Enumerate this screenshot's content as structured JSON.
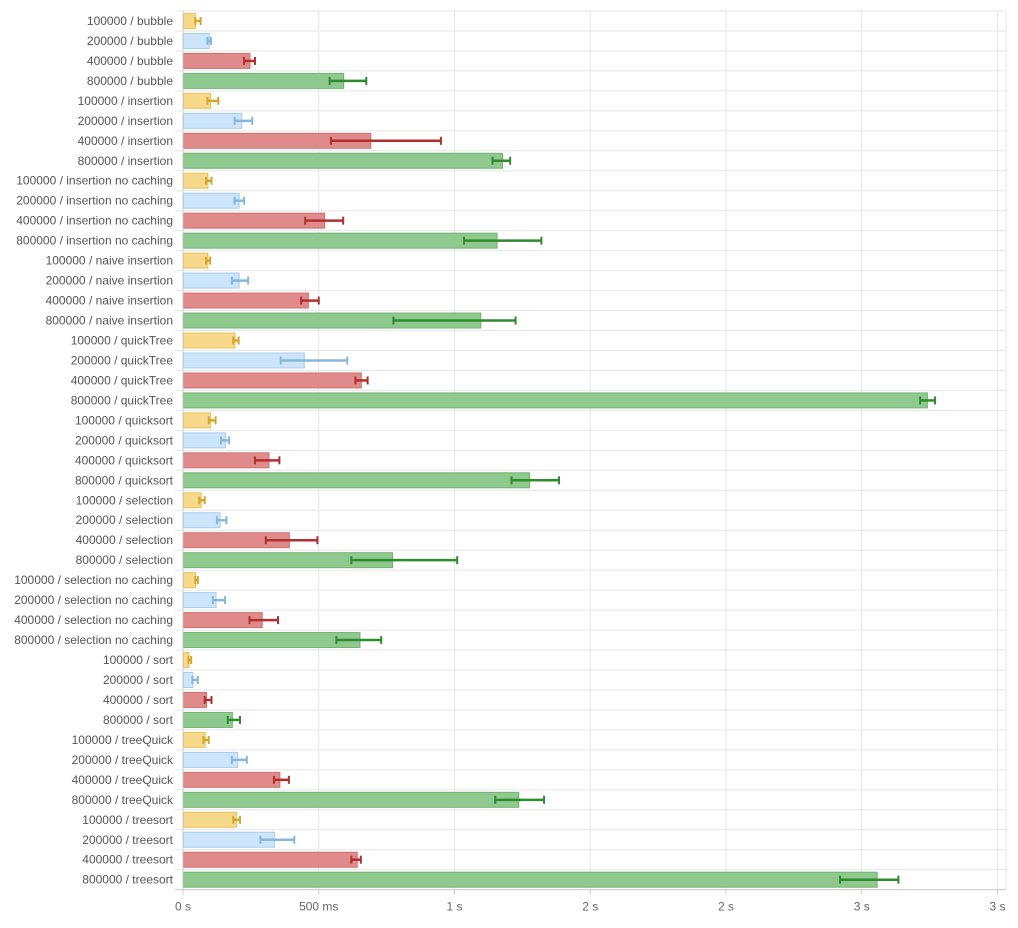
{
  "chart_data": {
    "type": "bar",
    "orientation": "horizontal",
    "error_bars": true,
    "grid": true,
    "x_unit": "ms",
    "xlim": [
      0,
      3000
    ],
    "x_ticks": [
      {
        "value": 0,
        "label": "0 s"
      },
      {
        "value": 500,
        "label": "500 ms"
      },
      {
        "value": 1000,
        "label": "1 s"
      },
      {
        "value": 1500,
        "label": "2 s"
      },
      {
        "value": 2000,
        "label": "2 s"
      },
      {
        "value": 2500,
        "label": "3 s"
      },
      {
        "value": 3000,
        "label": "3 s"
      }
    ],
    "colors": {
      "100000": {
        "fill": "#f7d98b",
        "stroke": "#e8c25a",
        "error": "#d4a72c"
      },
      "200000": {
        "fill": "#cce5fa",
        "stroke": "#a9cdeb",
        "error": "#86b8de"
      },
      "400000": {
        "fill": "#e08b8b",
        "stroke": "#d47070",
        "error": "#b03030"
      },
      "800000": {
        "fill": "#8fc98f",
        "stroke": "#6fb56f",
        "error": "#2e8b2e"
      }
    },
    "bars": [
      {
        "label": "100000 / bubble",
        "size": "100000",
        "value": 45,
        "err_low": 45,
        "err_high": 65
      },
      {
        "label": "200000 / bubble",
        "size": "200000",
        "value": 95,
        "err_low": 90,
        "err_high": 103
      },
      {
        "label": "400000 / bubble",
        "size": "400000",
        "value": 245,
        "err_low": 225,
        "err_high": 265
      },
      {
        "label": "800000 / bubble",
        "size": "800000",
        "value": 590,
        "err_low": 540,
        "err_high": 675
      },
      {
        "label": "100000 / insertion",
        "size": "100000",
        "value": 100,
        "err_low": 90,
        "err_high": 130
      },
      {
        "label": "200000 / insertion",
        "size": "200000",
        "value": 215,
        "err_low": 190,
        "err_high": 255
      },
      {
        "label": "400000 / insertion",
        "size": "400000",
        "value": 690,
        "err_low": 545,
        "err_high": 950
      },
      {
        "label": "800000 / insertion",
        "size": "800000",
        "value": 1175,
        "err_low": 1140,
        "err_high": 1205
      },
      {
        "label": "100000 / insertion no caching",
        "size": "100000",
        "value": 90,
        "err_low": 85,
        "err_high": 105
      },
      {
        "label": "200000 / insertion no caching",
        "size": "200000",
        "value": 205,
        "err_low": 190,
        "err_high": 225
      },
      {
        "label": "400000 / insertion no caching",
        "size": "400000",
        "value": 520,
        "err_low": 450,
        "err_high": 590
      },
      {
        "label": "800000 / insertion no caching",
        "size": "800000",
        "value": 1155,
        "err_low": 1035,
        "err_high": 1320
      },
      {
        "label": "100000 / naive insertion",
        "size": "100000",
        "value": 90,
        "err_low": 85,
        "err_high": 100
      },
      {
        "label": "200000 / naive insertion",
        "size": "200000",
        "value": 205,
        "err_low": 180,
        "err_high": 240
      },
      {
        "label": "400000 / naive insertion",
        "size": "400000",
        "value": 460,
        "err_low": 435,
        "err_high": 500
      },
      {
        "label": "800000 / naive insertion",
        "size": "800000",
        "value": 1095,
        "err_low": 775,
        "err_high": 1225
      },
      {
        "label": "100000 / quickTree",
        "size": "100000",
        "value": 190,
        "err_low": 185,
        "err_high": 205
      },
      {
        "label": "200000 / quickTree",
        "size": "200000",
        "value": 445,
        "err_low": 360,
        "err_high": 605
      },
      {
        "label": "400000 / quickTree",
        "size": "400000",
        "value": 655,
        "err_low": 635,
        "err_high": 680
      },
      {
        "label": "800000 / quickTree",
        "size": "800000",
        "value": 2740,
        "err_low": 2715,
        "err_high": 2770
      },
      {
        "label": "100000 / quicksort",
        "size": "100000",
        "value": 100,
        "err_low": 95,
        "err_high": 120
      },
      {
        "label": "200000 / quicksort",
        "size": "200000",
        "value": 155,
        "err_low": 140,
        "err_high": 170
      },
      {
        "label": "400000 / quicksort",
        "size": "400000",
        "value": 315,
        "err_low": 265,
        "err_high": 355
      },
      {
        "label": "800000 / quicksort",
        "size": "800000",
        "value": 1275,
        "err_low": 1210,
        "err_high": 1385
      },
      {
        "label": "100000 / selection",
        "size": "100000",
        "value": 65,
        "err_low": 60,
        "err_high": 80
      },
      {
        "label": "200000 / selection",
        "size": "200000",
        "value": 135,
        "err_low": 125,
        "err_high": 160
      },
      {
        "label": "400000 / selection",
        "size": "400000",
        "value": 390,
        "err_low": 305,
        "err_high": 495
      },
      {
        "label": "800000 / selection",
        "size": "800000",
        "value": 770,
        "err_low": 620,
        "err_high": 1010
      },
      {
        "label": "100000 / selection no caching",
        "size": "100000",
        "value": 45,
        "err_low": 45,
        "err_high": 55
      },
      {
        "label": "200000 / selection no caching",
        "size": "200000",
        "value": 120,
        "err_low": 110,
        "err_high": 155
      },
      {
        "label": "400000 / selection no caching",
        "size": "400000",
        "value": 290,
        "err_low": 245,
        "err_high": 350
      },
      {
        "label": "800000 / selection no caching",
        "size": "800000",
        "value": 650,
        "err_low": 565,
        "err_high": 730
      },
      {
        "label": "100000 / sort",
        "size": "100000",
        "value": 20,
        "err_low": 20,
        "err_high": 30
      },
      {
        "label": "200000 / sort",
        "size": "200000",
        "value": 35,
        "err_low": 35,
        "err_high": 55
      },
      {
        "label": "400000 / sort",
        "size": "400000",
        "value": 85,
        "err_low": 80,
        "err_high": 105
      },
      {
        "label": "800000 / sort",
        "size": "800000",
        "value": 180,
        "err_low": 165,
        "err_high": 210
      },
      {
        "label": "100000 / treeQuick",
        "size": "100000",
        "value": 80,
        "err_low": 75,
        "err_high": 95
      },
      {
        "label": "200000 / treeQuick",
        "size": "200000",
        "value": 200,
        "err_low": 180,
        "err_high": 235
      },
      {
        "label": "400000 / treeQuick",
        "size": "400000",
        "value": 355,
        "err_low": 335,
        "err_high": 390
      },
      {
        "label": "800000 / treeQuick",
        "size": "800000",
        "value": 1235,
        "err_low": 1150,
        "err_high": 1330
      },
      {
        "label": "100000 / treesort",
        "size": "100000",
        "value": 195,
        "err_low": 185,
        "err_high": 210
      },
      {
        "label": "200000 / treesort",
        "size": "200000",
        "value": 335,
        "err_low": 285,
        "err_high": 410
      },
      {
        "label": "400000 / treesort",
        "size": "400000",
        "value": 640,
        "err_low": 620,
        "err_high": 655
      },
      {
        "label": "800000 / treesort",
        "size": "800000",
        "value": 2555,
        "err_low": 2420,
        "err_high": 2635
      }
    ]
  }
}
